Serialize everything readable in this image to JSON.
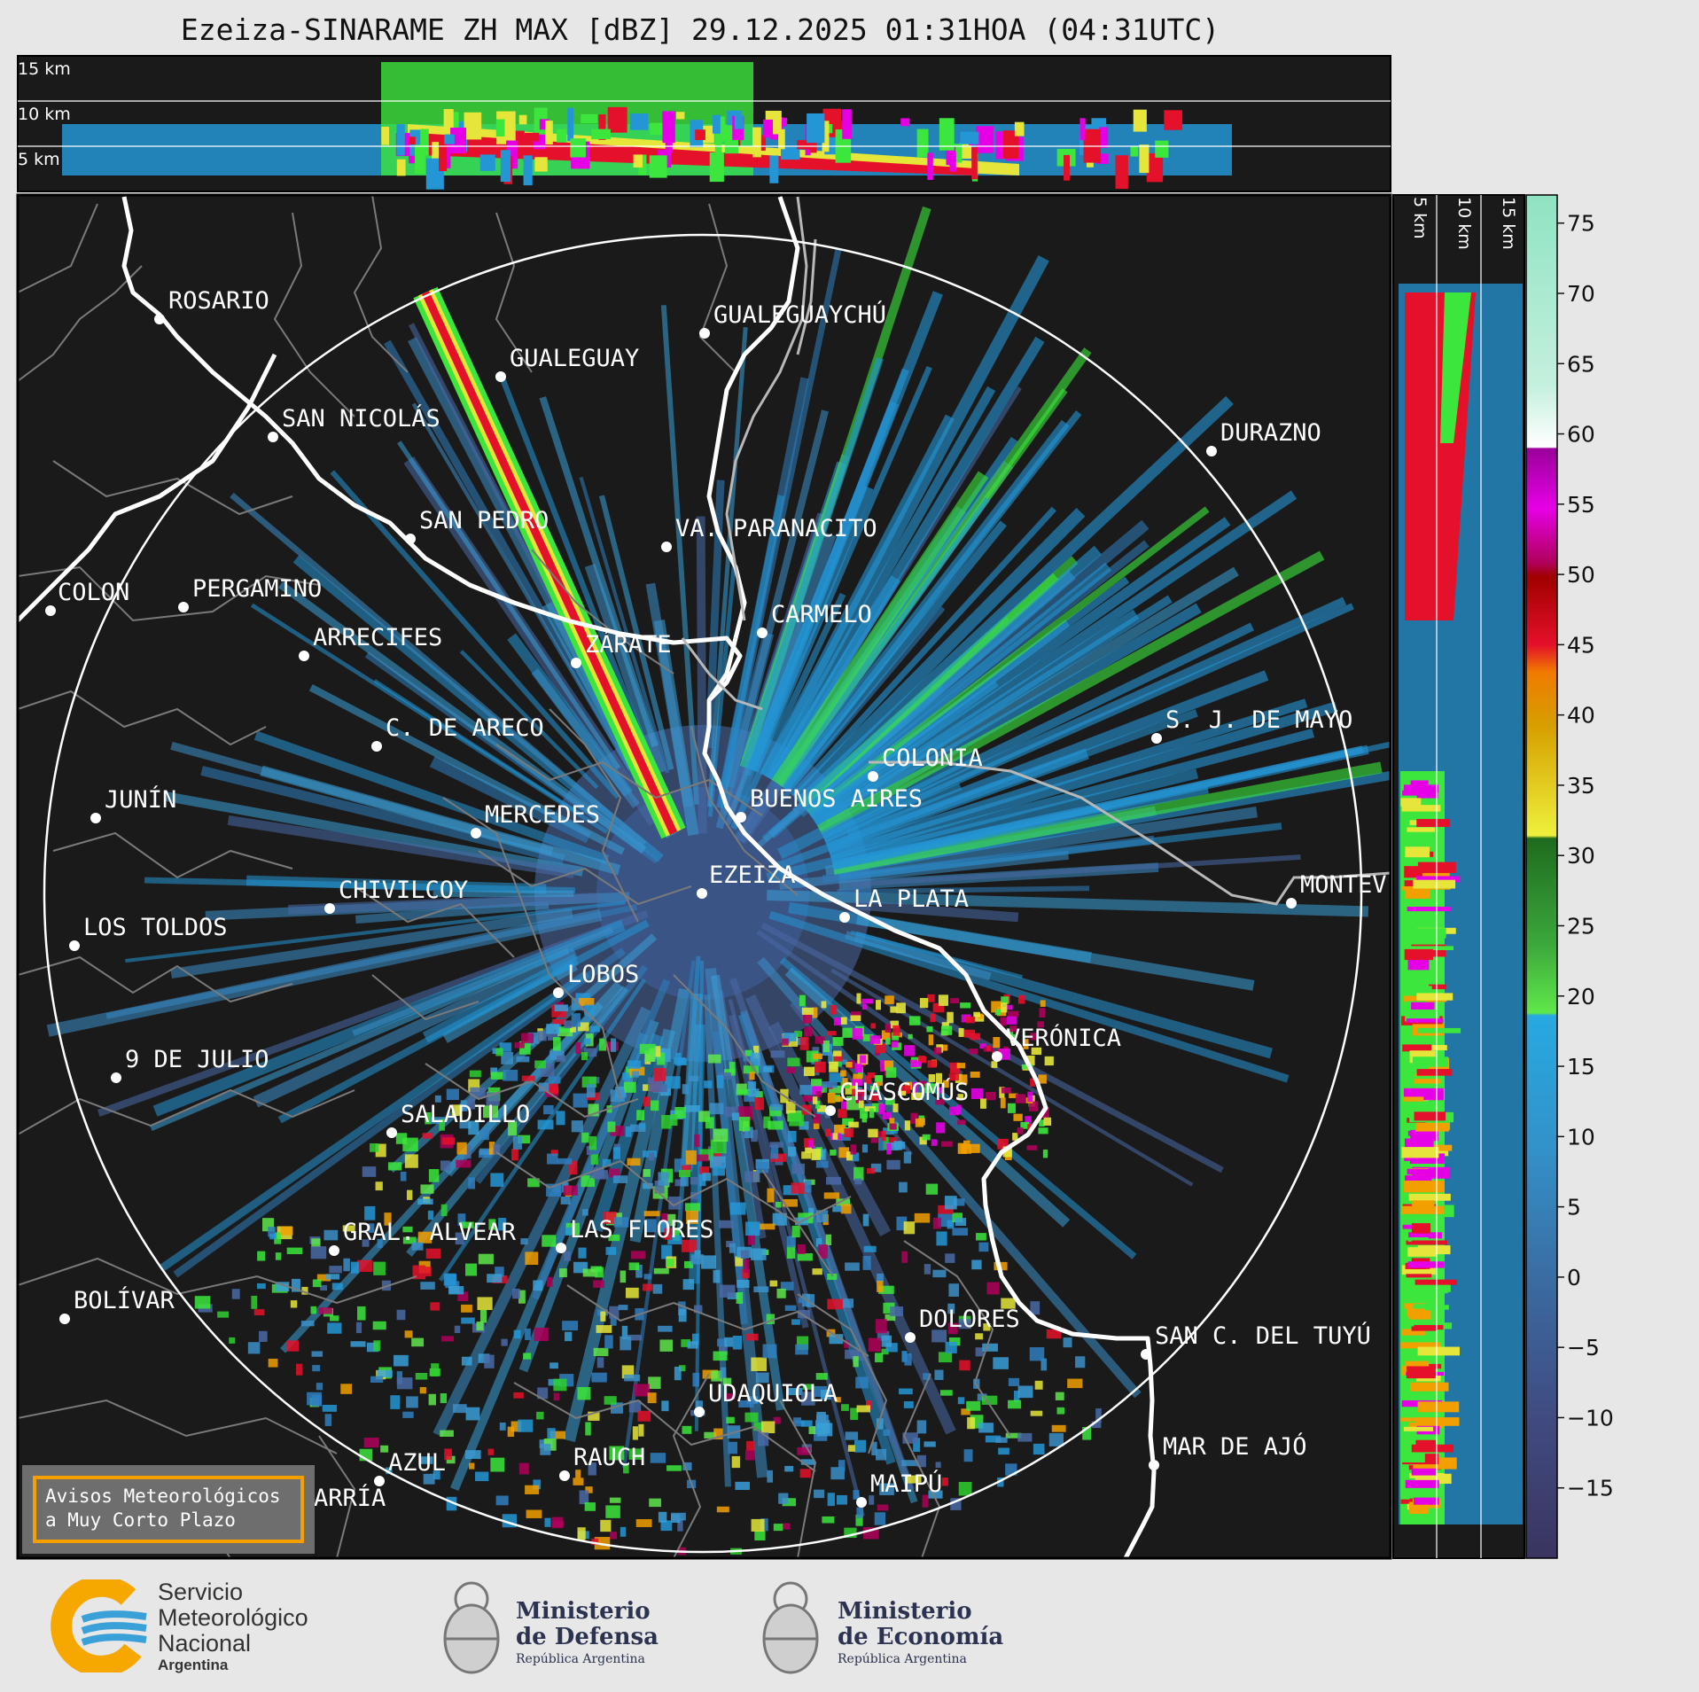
{
  "title": "Ezeiza-SINARAME ZH MAX [dBZ] 29.12.2025 01:31HOA (04:31UTC)",
  "top_profile": {
    "levels": [
      "15 km",
      "10 km",
      "5 km"
    ]
  },
  "side_profile": {
    "levels": [
      "5 km",
      "10 km",
      "15 km"
    ]
  },
  "colorbar": {
    "ticks": [
      "75",
      "70",
      "65",
      "60",
      "55",
      "50",
      "45",
      "40",
      "35",
      "30",
      "25",
      "20",
      "15",
      "10",
      "5",
      "0",
      "−5",
      "−10",
      "−15"
    ],
    "range": [
      -20,
      77
    ]
  },
  "cities": [
    "ROSARIO",
    "GUALEGUAYCHÚ",
    "GUALEGUAY",
    "SAN NICOLÁS",
    "DURAZNO",
    "SAN PEDRO",
    "VA. PARANACITO",
    "COLON",
    "PERGAMINO",
    "CARMELO",
    "ARRECIFES",
    "ZÁRATE",
    "S. J. DE MAYO",
    "C. DE ARECO",
    "COLONIA",
    "JUNÍN",
    "MERCEDES",
    "BUENOS AIRES",
    "EZEIZA",
    "MONTEV",
    "CHIVILCOY",
    "LA PLATA",
    "LOS TOLDOS",
    "LOBOS",
    "VERÓNICA",
    "9 DE JULIO",
    "CHASCOMÚS",
    "SALADILLO",
    "GRAL. ALVEAR",
    "LAS FLORES",
    "BOLÍVAR",
    "DOLORES",
    "SAN C. DEL TUYÚ",
    "UDAQUIOLA",
    "MAR DE AJÓ",
    "AZUL",
    "RAUCH",
    "OLAVARRÍA",
    "MAIPÚ"
  ],
  "notice": {
    "line1": "Avisos Meteorológicos",
    "line2": "a Muy Corto Plazo"
  },
  "footer": {
    "smn": {
      "line1": "Servicio",
      "line2": "Meteorológico",
      "line3": "Nacional",
      "line4": "Argentina"
    },
    "defensa": {
      "line1": "Ministerio",
      "line2": "de Defensa",
      "line3": "República Argentina"
    },
    "economia": {
      "line1": "Ministerio",
      "line2": "de Economía",
      "line3": "República Argentina"
    }
  },
  "colors": {
    "map_bg": "#1a1a1a",
    "range_ring": "#ffffff",
    "coast": "#ffffff",
    "logo_orange": "#f7a800",
    "logo_blue": "#3aa0d8"
  }
}
